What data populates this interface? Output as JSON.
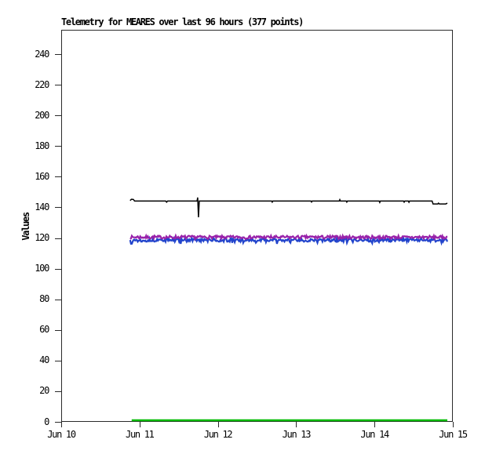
{
  "page": {
    "background_color": "#ffffff",
    "axis_color": "#2a2a2a"
  },
  "chart_data": {
    "type": "line",
    "title": "Telemetry for MEARES over last 96 hours (377 points)",
    "ylabel": "Values",
    "xlabel": "",
    "points": 377,
    "grid": false,
    "legend": "none",
    "ylim": [
      0,
      256
    ],
    "y_ticks": [
      0,
      20,
      40,
      60,
      80,
      100,
      120,
      140,
      160,
      180,
      200,
      220,
      240
    ],
    "x_ticks": [
      "Jun 10",
      "Jun 11",
      "Jun 12",
      "Jun 13",
      "Jun 14",
      "Jun 15"
    ],
    "data_x_start_frac": 0.176,
    "data_x_end_frac": 0.986,
    "series": [
      {
        "name": "blue-line",
        "color": "#2244cc",
        "style": "noisy",
        "baseline": 118.6,
        "noise_amp": 1.1,
        "quantize": 0.35,
        "seed": 13,
        "downspike_chance": 0.06,
        "downspike_depth": 1.5,
        "stroke_width": 2.2
      },
      {
        "name": "purple-line",
        "color": "#9922aa",
        "style": "noisy",
        "baseline": 120.5,
        "noise_amp": 1.0,
        "quantize": 0.35,
        "seed": 7,
        "downspike_chance": 0.0,
        "downspike_depth": 0,
        "stroke_width": 2.2
      },
      {
        "name": "black-line",
        "color": "#000000",
        "style": "keypoints",
        "stroke_width": 1.5,
        "keypoints": [
          [
            0.0,
            144.4
          ],
          [
            0.004,
            145.3
          ],
          [
            0.01,
            145.2
          ],
          [
            0.014,
            144.1
          ],
          [
            0.112,
            144.1
          ],
          [
            0.115,
            143.4
          ],
          [
            0.118,
            144.1
          ],
          [
            0.211,
            144.1
          ],
          [
            0.213,
            146.4
          ],
          [
            0.2155,
            133.5
          ],
          [
            0.218,
            144.1
          ],
          [
            0.446,
            144.1
          ],
          [
            0.448,
            143.4
          ],
          [
            0.45,
            144.1
          ],
          [
            0.57,
            144.1
          ],
          [
            0.572,
            143.5
          ],
          [
            0.574,
            144.1
          ],
          [
            0.659,
            144.1
          ],
          [
            0.661,
            145.0
          ],
          [
            0.663,
            144.1
          ],
          [
            0.681,
            144.1
          ],
          [
            0.683,
            143.4
          ],
          [
            0.685,
            144.1
          ],
          [
            0.785,
            144.1
          ],
          [
            0.787,
            143.2
          ],
          [
            0.789,
            144.1
          ],
          [
            0.862,
            144.1
          ],
          [
            0.864,
            143.4
          ],
          [
            0.866,
            144.1
          ],
          [
            0.877,
            144.1
          ],
          [
            0.879,
            143.3
          ],
          [
            0.881,
            144.1
          ],
          [
            0.952,
            144.1
          ],
          [
            0.955,
            142.2
          ],
          [
            0.97,
            142.2
          ],
          [
            0.972,
            142.7
          ],
          [
            0.975,
            142.2
          ],
          [
            0.995,
            142.2
          ],
          [
            1.0,
            142.7
          ]
        ]
      },
      {
        "name": "green-line",
        "color": "#00bb00",
        "style": "keypoints",
        "stroke_width": 2.5,
        "keypoints": [
          [
            0.005,
            1.0
          ],
          [
            1.0,
            1.0
          ]
        ]
      }
    ]
  }
}
